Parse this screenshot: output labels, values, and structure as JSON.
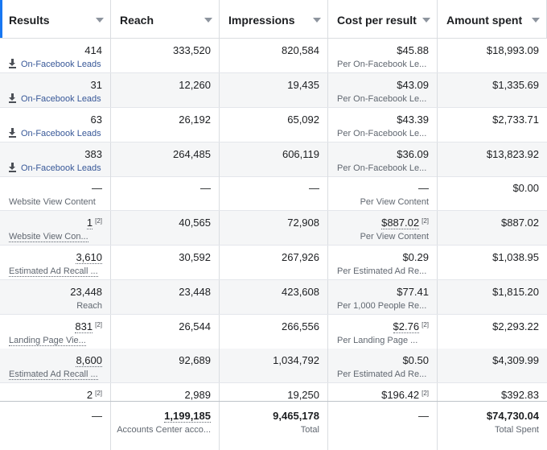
{
  "columns": [
    "Results",
    "Reach",
    "Impressions",
    "Cost per result",
    "Amount spent"
  ],
  "rows": [
    {
      "results": "414",
      "results_label": "On-Facebook Leads",
      "reach": "333,520",
      "impressions": "820,584",
      "cost": "$45.88",
      "cost_label": "Per On-Facebook Le...",
      "spent": "$18,993.09"
    },
    {
      "results": "31",
      "results_label": "On-Facebook Leads",
      "reach": "12,260",
      "impressions": "19,435",
      "cost": "$43.09",
      "cost_label": "Per On-Facebook Le...",
      "spent": "$1,335.69"
    },
    {
      "results": "63",
      "results_label": "On-Facebook Leads",
      "reach": "26,192",
      "impressions": "65,092",
      "cost": "$43.39",
      "cost_label": "Per On-Facebook Le...",
      "spent": "$2,733.71"
    },
    {
      "results": "383",
      "results_label": "On-Facebook Leads",
      "reach": "264,485",
      "impressions": "606,119",
      "cost": "$36.09",
      "cost_label": "Per On-Facebook Le...",
      "spent": "$13,823.92"
    },
    {
      "results": "—",
      "results_label": "Website View Content",
      "reach": "—",
      "impressions": "—",
      "cost": "—",
      "cost_label": "Per View Content",
      "spent": "$0.00"
    },
    {
      "results": "1",
      "results_note": "[2]",
      "results_label": "Website View Con...",
      "reach": "40,565",
      "impressions": "72,908",
      "cost": "$887.02",
      "cost_note": "[2]",
      "cost_label": "Per View Content",
      "spent": "$887.02"
    },
    {
      "results": "3,610",
      "results_label": "Estimated Ad Recall ...",
      "reach": "30,592",
      "impressions": "267,926",
      "cost": "$0.29",
      "cost_label": "Per Estimated Ad Re...",
      "spent": "$1,038.95"
    },
    {
      "results": "23,448",
      "results_label": "Reach",
      "reach": "23,448",
      "impressions": "423,608",
      "cost": "$77.41",
      "cost_label": "Per 1,000 People Re...",
      "spent": "$1,815.20"
    },
    {
      "results": "831",
      "results_note": "[2]",
      "results_label": "Landing Page Vie...",
      "reach": "26,544",
      "impressions": "266,556",
      "cost": "$2.76",
      "cost_note": "[2]",
      "cost_label": "Per Landing Page ...",
      "spent": "$2,293.22"
    },
    {
      "results": "8,600",
      "results_label": "Estimated Ad Recall ...",
      "reach": "92,689",
      "impressions": "1,034,792",
      "cost": "$0.50",
      "cost_label": "Per Estimated Ad Re...",
      "spent": "$4,309.99"
    },
    {
      "results": "2",
      "results_note": "[2]",
      "reach": "2,989",
      "impressions": "19,250",
      "cost": "$196.42",
      "cost_note": "[2]",
      "spent": "$392.83"
    }
  ],
  "totals": {
    "results": "—",
    "reach": "1,199,185",
    "reach_label": "Accounts Center acco...",
    "impressions": "9,465,178",
    "impressions_label": "Total",
    "cost": "—",
    "spent": "$74,730.04",
    "spent_label": "Total Spent"
  },
  "colors": {
    "accent": "#1877f2",
    "link": "#385898",
    "stripe": "#f5f6f7"
  },
  "icons": {
    "lead": "download-icon",
    "sort": "chevron-down-icon"
  }
}
